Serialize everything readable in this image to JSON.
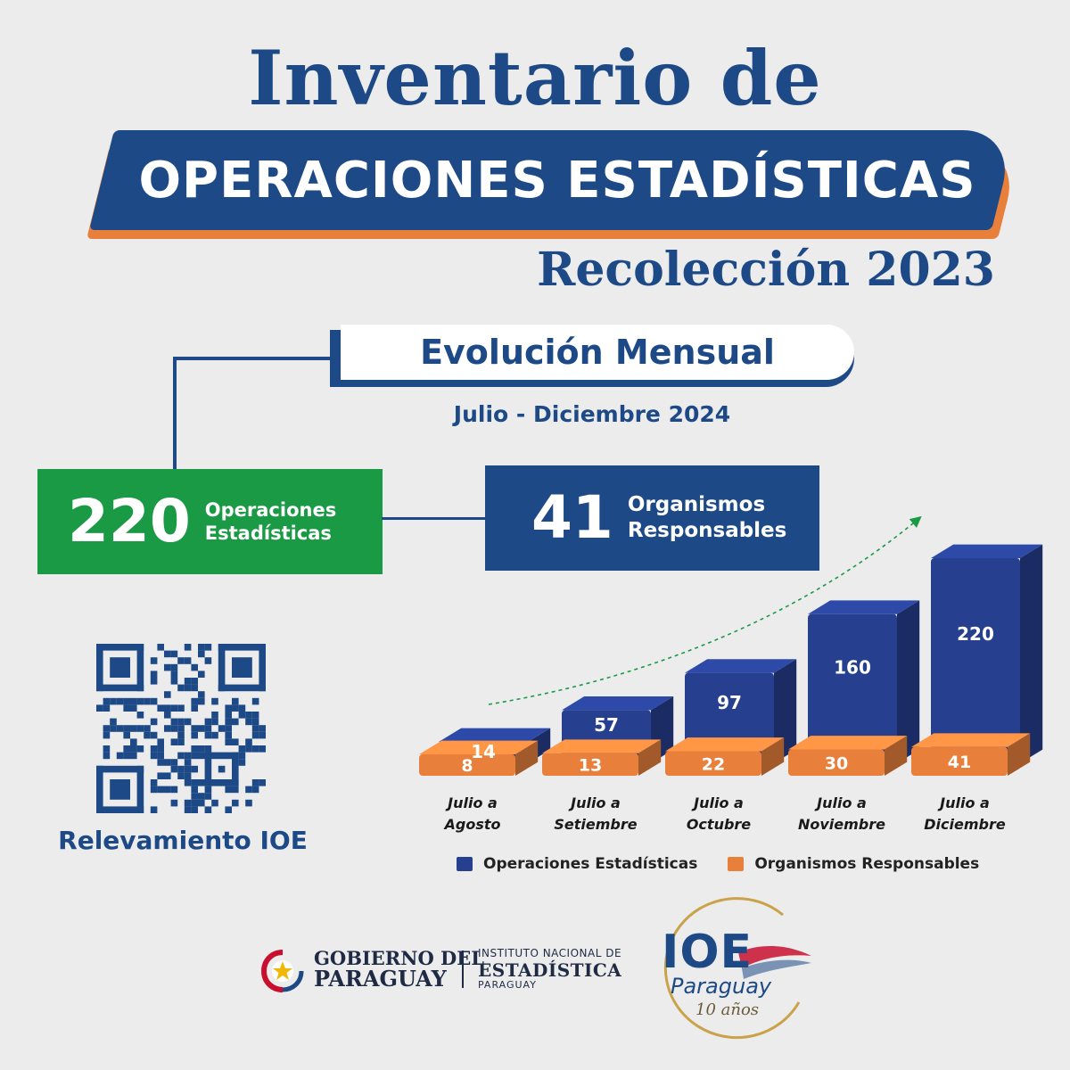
{
  "header": {
    "title_line1": "Inventario de",
    "title_banner": "OPERACIONES ESTADÍSTICAS",
    "subtitle": "Recolección 2023"
  },
  "section": {
    "title": "Evolución Mensual",
    "period": "Julio - Diciembre 2024"
  },
  "kpis": {
    "operaciones": {
      "value": "220",
      "label": "Operaciones\nEstadísticas"
    },
    "organismos": {
      "value": "41",
      "label": "Organismos\nResponsables"
    }
  },
  "qr": {
    "caption": "Relevamiento IOE"
  },
  "colors": {
    "blue": "#1d4a86",
    "bar_blue": "#263f8f",
    "bar_orange": "#e8803c",
    "green": "#1a9a44",
    "background": "#ececed"
  },
  "chart_data": {
    "type": "bar",
    "categories": [
      "Julio a Agosto",
      "Julio a Setiembre",
      "Julio a Octubre",
      "Julio a Noviembre",
      "Julio a Diciembre"
    ],
    "series": [
      {
        "name": "Operaciones Estadísticas",
        "values": [
          14,
          57,
          97,
          160,
          220
        ],
        "color": "#263f8f"
      },
      {
        "name": "Organismos Responsables",
        "values": [
          8,
          13,
          22,
          30,
          41
        ],
        "color": "#e8803c"
      }
    ],
    "legend_position": "bottom",
    "grid": false,
    "trend_arrow": true
  },
  "footer": {
    "gov_line1": "GOBIERNO DEL",
    "gov_line2": "PARAGUAY",
    "ine_line1": "INSTITUTO NACIONAL DE",
    "ine_line2": "ESTADÍSTICA",
    "ine_line3": "PARAGUAY",
    "ioe_big": "IOE",
    "ioe_country": "Paraguay",
    "ioe_years": "10 años"
  }
}
